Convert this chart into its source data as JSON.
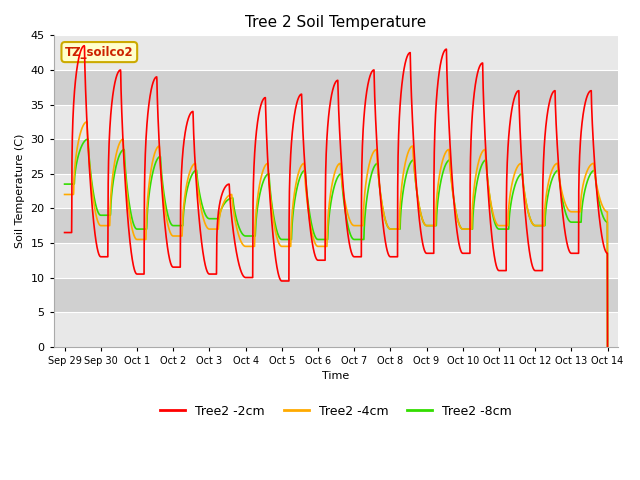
{
  "title": "Tree 2 Soil Temperature",
  "ylabel": "Soil Temperature (C)",
  "xlabel": "Time",
  "annotation": "TZ_soilco2",
  "ylim": [
    0,
    45
  ],
  "yticks": [
    0,
    5,
    10,
    15,
    20,
    25,
    30,
    35,
    40,
    45
  ],
  "color_2cm": "#ff0000",
  "color_4cm": "#ffaa00",
  "color_8cm": "#33dd00",
  "line_width": 1.2,
  "background_plot": "#e0e0e0",
  "background_fig": "#ffffff",
  "band_light": "#e8e8e8",
  "band_dark": "#d0d0d0",
  "legend_labels": [
    "Tree2 -2cm",
    "Tree2 -4cm",
    "Tree2 -8cm"
  ],
  "tick_labels": [
    "Sep 29",
    "Sep 30",
    "Oct 1",
    "Oct 2",
    "Oct 3",
    "Oct 4",
    "Oct 5",
    "Oct 6",
    "Oct 7",
    "Oct 8",
    "Oct 9",
    "Oct 10",
    "Oct 11",
    "Oct 12",
    "Oct 13",
    "Oct 14"
  ],
  "tick_positions": [
    0,
    1,
    2,
    3,
    4,
    5,
    6,
    7,
    8,
    9,
    10,
    11,
    12,
    13,
    14,
    15
  ],
  "cycles": [
    {
      "day": 0,
      "min2": 16.5,
      "max2": 43.5,
      "min4": 22.0,
      "max4": 32.5,
      "min8": 23.5,
      "max8": 30.0
    },
    {
      "day": 1,
      "min2": 13.0,
      "max2": 40.0,
      "min4": 17.5,
      "max4": 30.0,
      "min8": 19.0,
      "max8": 28.5
    },
    {
      "day": 2,
      "min2": 10.5,
      "max2": 39.0,
      "min4": 15.5,
      "max4": 29.0,
      "min8": 17.0,
      "max8": 27.5
    },
    {
      "day": 3,
      "min2": 11.5,
      "max2": 34.0,
      "min4": 16.0,
      "max4": 26.5,
      "min8": 17.5,
      "max8": 25.5
    },
    {
      "day": 4,
      "min2": 10.5,
      "max2": 23.5,
      "min4": 17.0,
      "max4": 22.0,
      "min8": 18.5,
      "max8": 21.5
    },
    {
      "day": 5,
      "min2": 10.0,
      "max2": 36.0,
      "min4": 14.5,
      "max4": 26.5,
      "min8": 16.0,
      "max8": 25.0
    },
    {
      "day": 6,
      "min2": 9.5,
      "max2": 36.5,
      "min4": 14.5,
      "max4": 26.5,
      "min8": 15.5,
      "max8": 25.5
    },
    {
      "day": 7,
      "min2": 12.5,
      "max2": 38.5,
      "min4": 14.5,
      "max4": 26.5,
      "min8": 15.5,
      "max8": 25.0
    },
    {
      "day": 8,
      "min2": 13.0,
      "max2": 40.0,
      "min4": 17.5,
      "max4": 28.5,
      "min8": 15.5,
      "max8": 26.5
    },
    {
      "day": 9,
      "min2": 13.0,
      "max2": 42.5,
      "min4": 17.0,
      "max4": 29.0,
      "min8": 17.0,
      "max8": 27.0
    },
    {
      "day": 10,
      "min2": 13.5,
      "max2": 43.0,
      "min4": 17.5,
      "max4": 28.5,
      "min8": 17.5,
      "max8": 27.0
    },
    {
      "day": 11,
      "min2": 13.5,
      "max2": 41.0,
      "min4": 17.0,
      "max4": 28.5,
      "min8": 17.0,
      "max8": 27.0
    },
    {
      "day": 12,
      "min2": 11.0,
      "max2": 37.0,
      "min4": 17.5,
      "max4": 26.5,
      "min8": 17.0,
      "max8": 25.0
    },
    {
      "day": 13,
      "min2": 11.0,
      "max2": 37.0,
      "min4": 17.5,
      "max4": 26.5,
      "min8": 17.5,
      "max8": 25.5
    },
    {
      "day": 14,
      "min2": 13.5,
      "max2": 37.0,
      "min4": 19.5,
      "max4": 26.5,
      "min8": 18.0,
      "max8": 25.5
    }
  ]
}
